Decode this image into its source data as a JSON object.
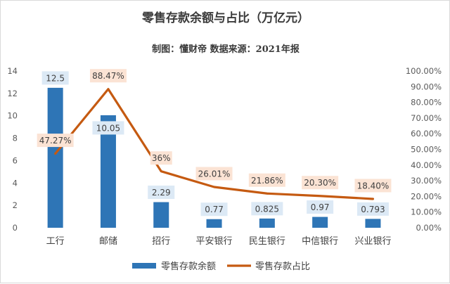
{
  "chart_data": {
    "type": "bar",
    "title": "零售存款余额与占比（万亿元）",
    "subtitle": "制图：懂财帝   数据来源：2021年报",
    "categories": [
      "工行",
      "邮储",
      "招行",
      "平安银行",
      "民生银行",
      "中信银行",
      "兴业银行"
    ],
    "series": [
      {
        "name": "零售存款余额",
        "type": "bar",
        "axis": "left",
        "color": "#2e75b6",
        "values": [
          12.5,
          10.05,
          2.29,
          0.77,
          0.825,
          0.97,
          0.793
        ],
        "labels": [
          "12.5",
          "10.05",
          "2.29",
          "0.77",
          "0.825",
          "0.97",
          "0.793"
        ]
      },
      {
        "name": "零售存款占比",
        "type": "line",
        "axis": "right",
        "color": "#c55a11",
        "values": [
          47.27,
          88.47,
          36,
          26.01,
          21.86,
          20.3,
          18.4
        ],
        "labels": [
          "47.27%",
          "88.47%",
          "36%",
          "26.01%",
          "21.86%",
          "20.30%",
          "18.40%"
        ]
      }
    ],
    "ylim_left": [
      0,
      14
    ],
    "yticks_left": [
      "0",
      "2",
      "4",
      "6",
      "8",
      "10",
      "12",
      "14"
    ],
    "ylim_right": [
      0,
      100
    ],
    "yticks_right": [
      "0.00%",
      "10.00%",
      "20.00%",
      "30.00%",
      "40.00%",
      "50.00%",
      "60.00%",
      "70.00%",
      "80.00%",
      "90.00%",
      "100.00%"
    ],
    "grid": false,
    "legend_position": "bottom",
    "bar_label_bg": "#dce9f5",
    "line_label_bg": "#fbe3d4"
  }
}
